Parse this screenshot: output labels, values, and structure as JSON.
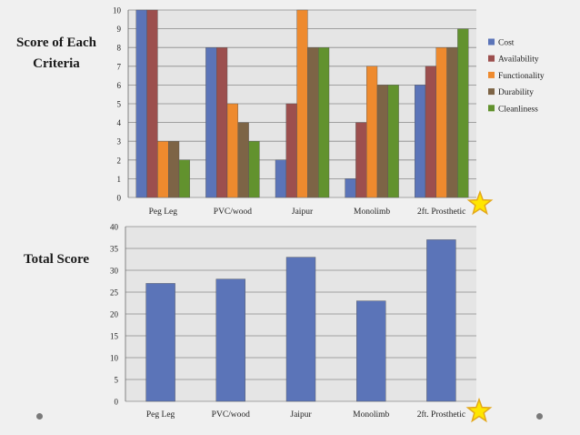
{
  "labels": {
    "top": "Score of Each Criteria",
    "bottom": "Total Score"
  },
  "chart_data": [
    {
      "type": "bar",
      "title": "",
      "xlabel": "",
      "ylabel": "",
      "categories": [
        "Peg Leg",
        "PVC/wood",
        "Jaipur",
        "Monolimb",
        "2ft. Prosthetic"
      ],
      "ylim": [
        0,
        10
      ],
      "yticks": [
        0,
        1,
        2,
        3,
        4,
        5,
        6,
        7,
        8,
        9,
        10
      ],
      "grid": true,
      "legend": "right",
      "series": [
        {
          "name": "Cost",
          "color": "#5b74b8",
          "values": [
            10,
            8,
            2,
            1,
            6
          ]
        },
        {
          "name": "Availability",
          "color": "#9c4f4e",
          "values": [
            10,
            8,
            5,
            4,
            7
          ]
        },
        {
          "name": "Functionality",
          "color": "#ee8a2e",
          "values": [
            3,
            5,
            10,
            7,
            8
          ]
        },
        {
          "name": "Durability",
          "color": "#7d6446",
          "values": [
            3,
            4,
            8,
            6,
            8
          ]
        },
        {
          "name": "Cleanliness",
          "color": "#62922e",
          "values": [
            2,
            3,
            8,
            6,
            9
          ]
        }
      ]
    },
    {
      "type": "bar",
      "title": "",
      "xlabel": "",
      "ylabel": "",
      "categories": [
        "Peg Leg",
        "PVC/wood",
        "Jaipur",
        "Monolimb",
        "2ft. Prosthetic"
      ],
      "ylim": [
        0,
        40
      ],
      "yticks": [
        0,
        5,
        10,
        15,
        20,
        25,
        30,
        35,
        40
      ],
      "grid": true,
      "legend": "none",
      "series": [
        {
          "name": "",
          "color": "#5b74b8",
          "values": [
            27,
            28,
            33,
            23,
            37
          ]
        }
      ]
    }
  ],
  "colors": {
    "star_fill": "#ffe600",
    "star_stroke": "#e3a81c"
  },
  "icons": [
    "star-icon"
  ]
}
